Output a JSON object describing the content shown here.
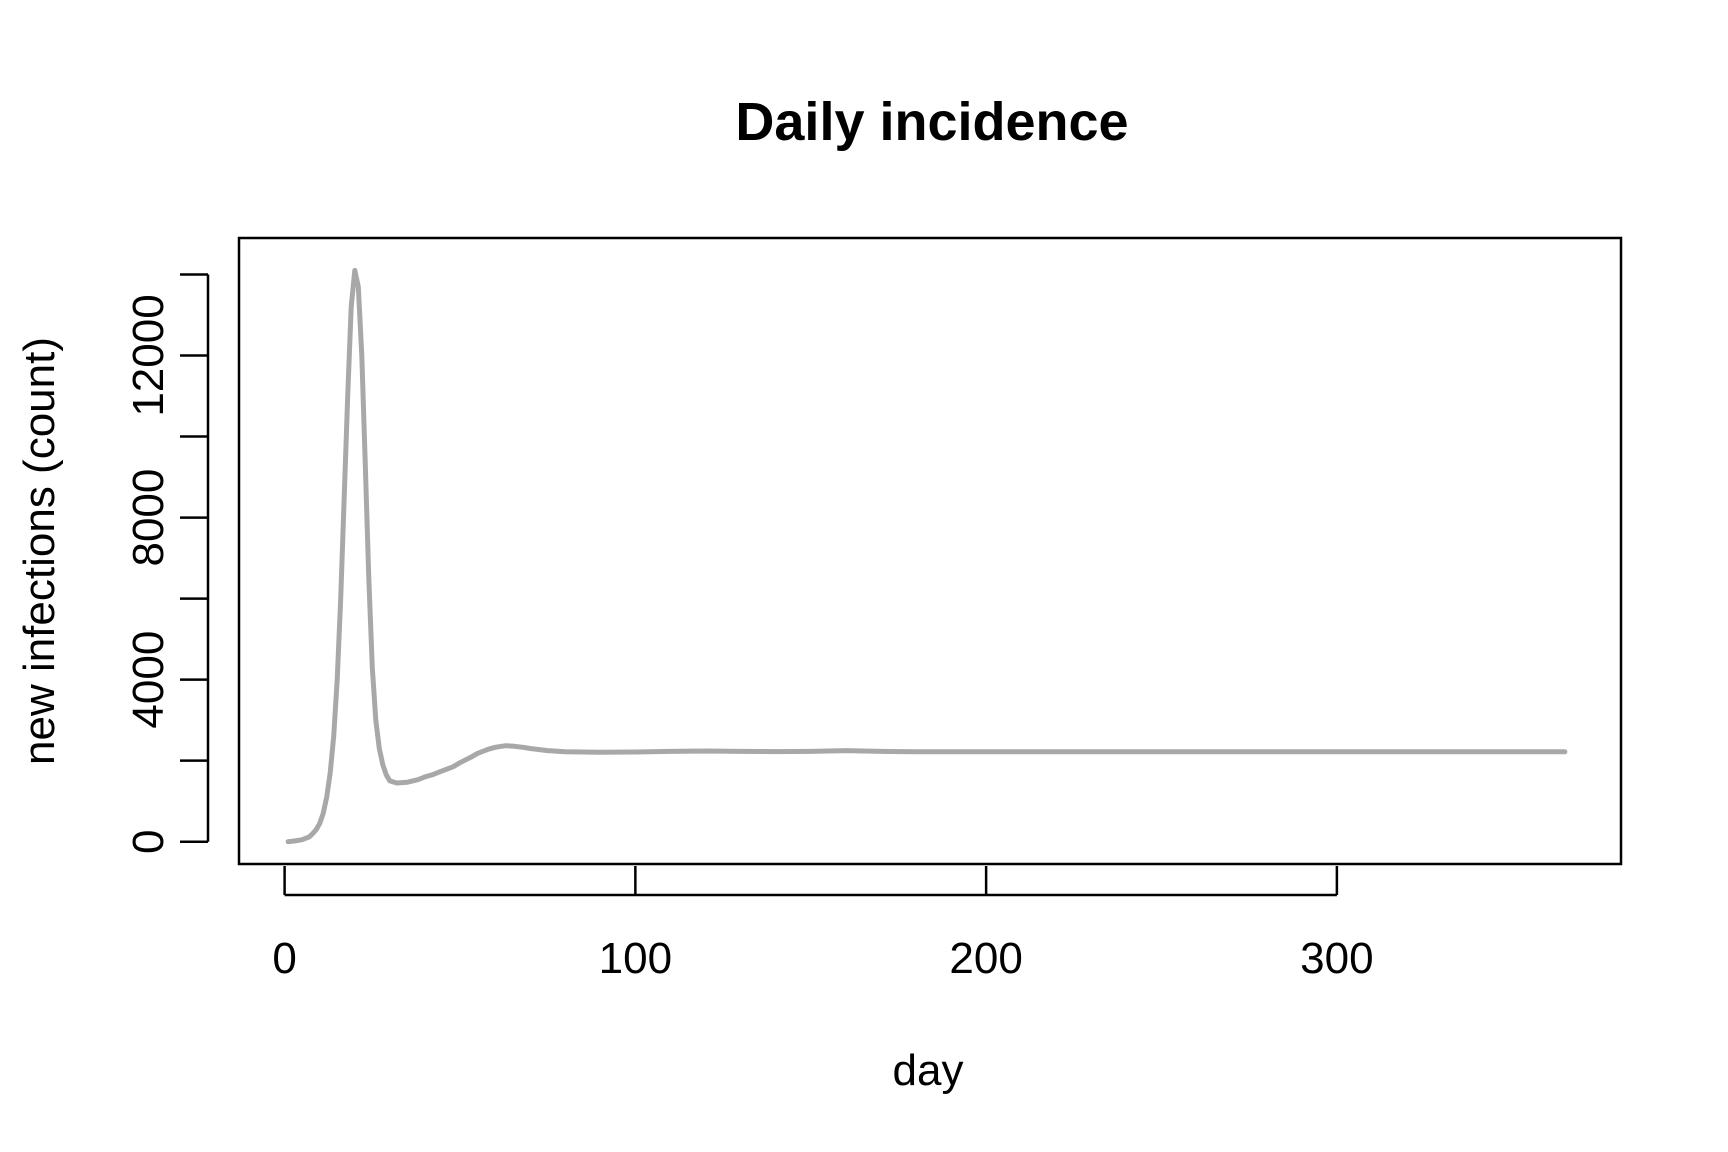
{
  "chart_data": {
    "type": "line",
    "title": "Daily incidence",
    "xlabel": "day",
    "ylabel": "new infections (count)",
    "xlim": [
      -13,
      381
    ],
    "ylim": [
      -550,
      14900
    ],
    "xticks": [
      0,
      100,
      200,
      300
    ],
    "yticks": [
      0,
      4000,
      8000,
      12000
    ],
    "yticks_minor": [
      2000,
      6000,
      10000,
      14000
    ],
    "grid": false,
    "legend": "none",
    "series": [
      {
        "color": "#a8a8a8",
        "x": [
          1,
          3,
          5,
          7,
          8,
          9,
          10,
          11,
          12,
          13,
          14,
          15,
          16,
          17,
          18,
          19,
          20,
          21,
          22,
          23,
          24,
          25,
          26,
          27,
          28,
          29,
          30,
          32,
          35,
          38,
          40,
          42,
          45,
          48,
          50,
          53,
          55,
          58,
          60,
          63,
          65,
          68,
          70,
          75,
          80,
          90,
          100,
          110,
          120,
          130,
          140,
          150,
          160,
          170,
          180,
          200,
          250,
          300,
          365
        ],
        "values": [
          0,
          20,
          50,
          120,
          200,
          300,
          450,
          700,
          1100,
          1700,
          2600,
          4000,
          6000,
          8500,
          11000,
          13200,
          14100,
          13700,
          12000,
          9300,
          6500,
          4300,
          3000,
          2300,
          1900,
          1650,
          1500,
          1450,
          1470,
          1530,
          1600,
          1650,
          1750,
          1850,
          1950,
          2080,
          2180,
          2280,
          2330,
          2370,
          2360,
          2330,
          2300,
          2250,
          2220,
          2210,
          2215,
          2230,
          2240,
          2230,
          2225,
          2230,
          2250,
          2230,
          2220,
          2220,
          2220,
          2220,
          2220
        ]
      }
    ]
  }
}
